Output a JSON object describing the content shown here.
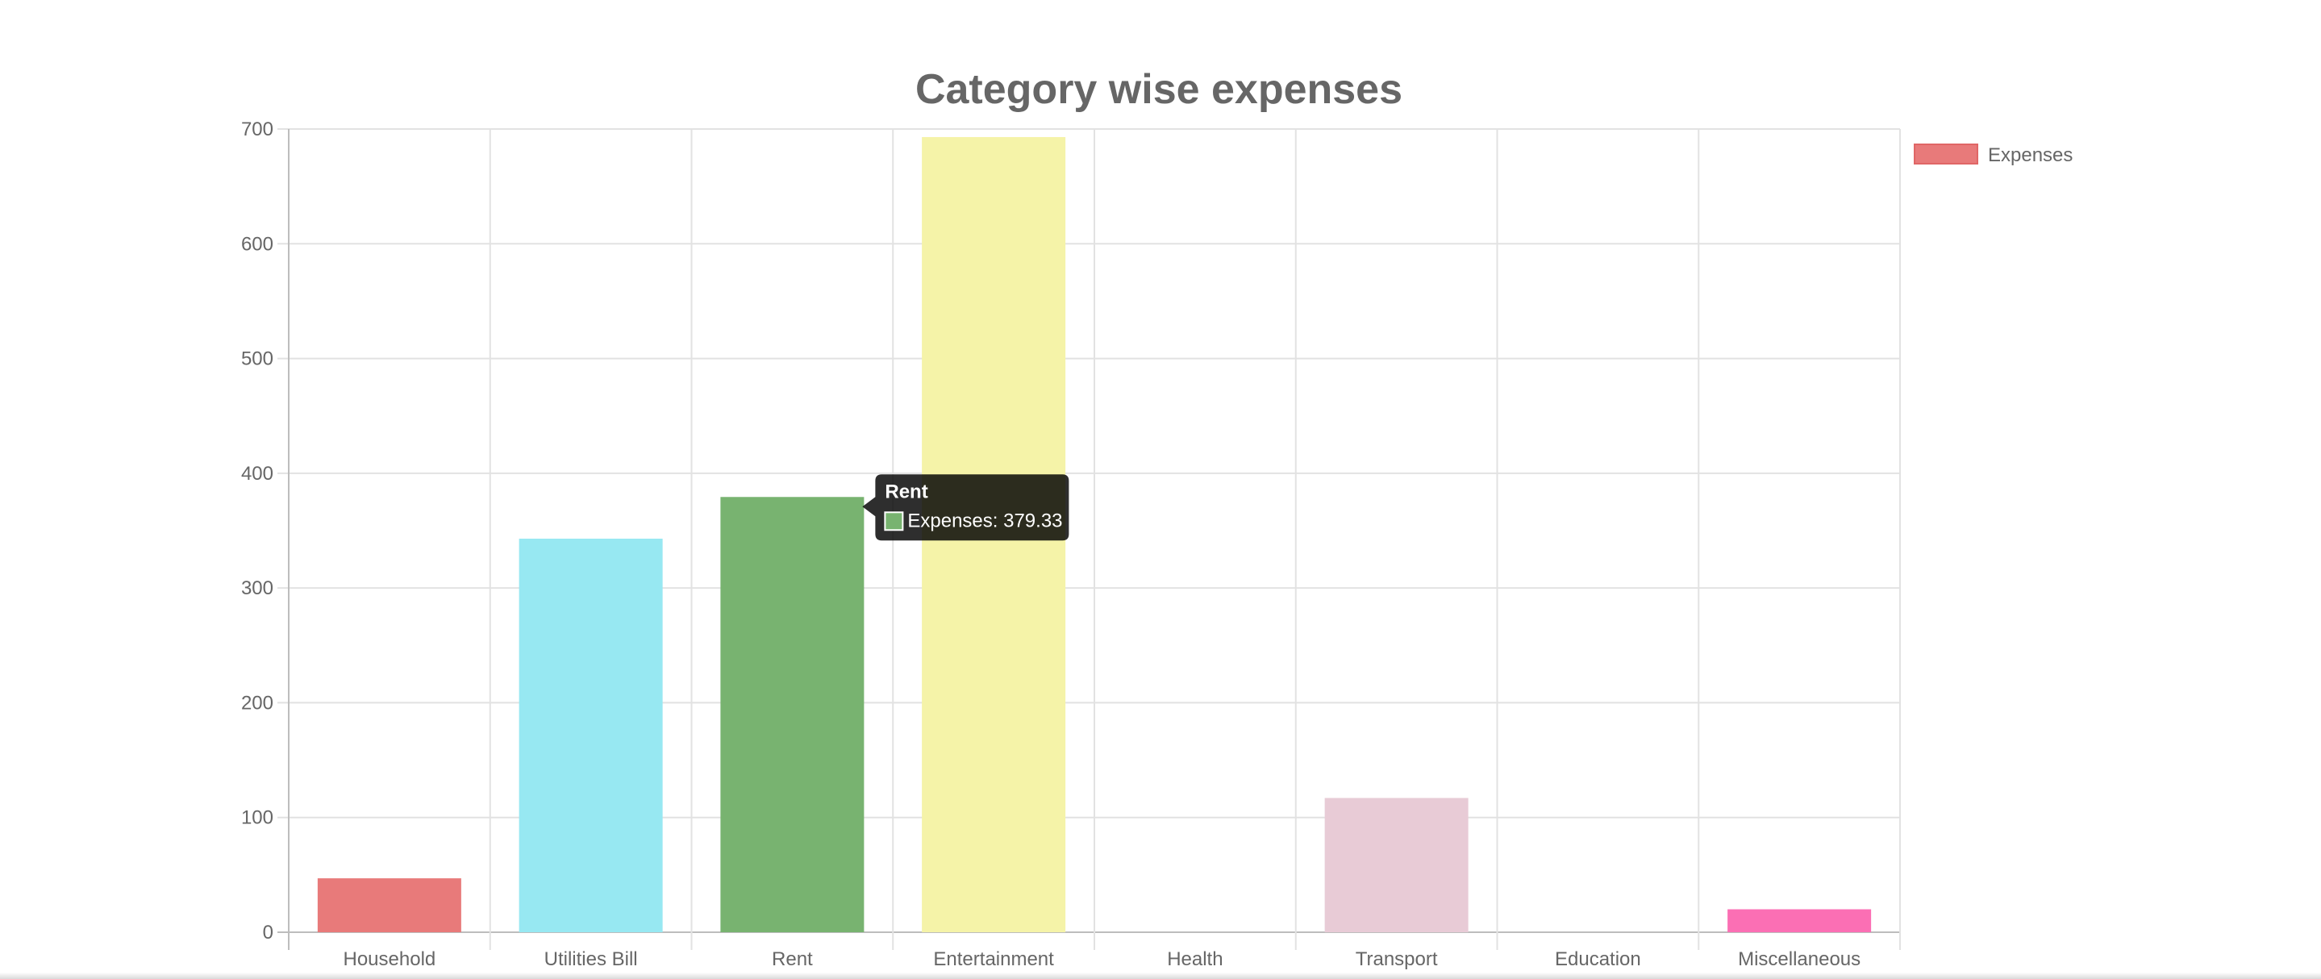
{
  "chart_data": {
    "type": "bar",
    "title": "Category wise expenses",
    "categories": [
      "Household",
      "Utilities Bill",
      "Rent",
      "Entertainment",
      "Health",
      "Transport",
      "Education",
      "Miscellaneous"
    ],
    "series": [
      {
        "name": "Expenses",
        "values": [
          47,
          343,
          379.33,
          693,
          0,
          117,
          0,
          20
        ],
        "colors": [
          "#e87a7a",
          "#97e8f2",
          "#78b370",
          "#f5f3a8",
          "#e5e5e5",
          "#e8cbd6",
          "#e5e5e5",
          "#fb6fb4"
        ]
      }
    ],
    "ylim": [
      0,
      700
    ],
    "yticks": [
      0,
      100,
      200,
      300,
      400,
      500,
      600,
      700
    ],
    "grid": true,
    "legend": {
      "position": "right",
      "label": "Expenses",
      "color": "#e87a7a"
    },
    "tooltip": {
      "category": "Rent",
      "label": "Expenses: 379.33",
      "swatch_color": "#78b370"
    }
  }
}
